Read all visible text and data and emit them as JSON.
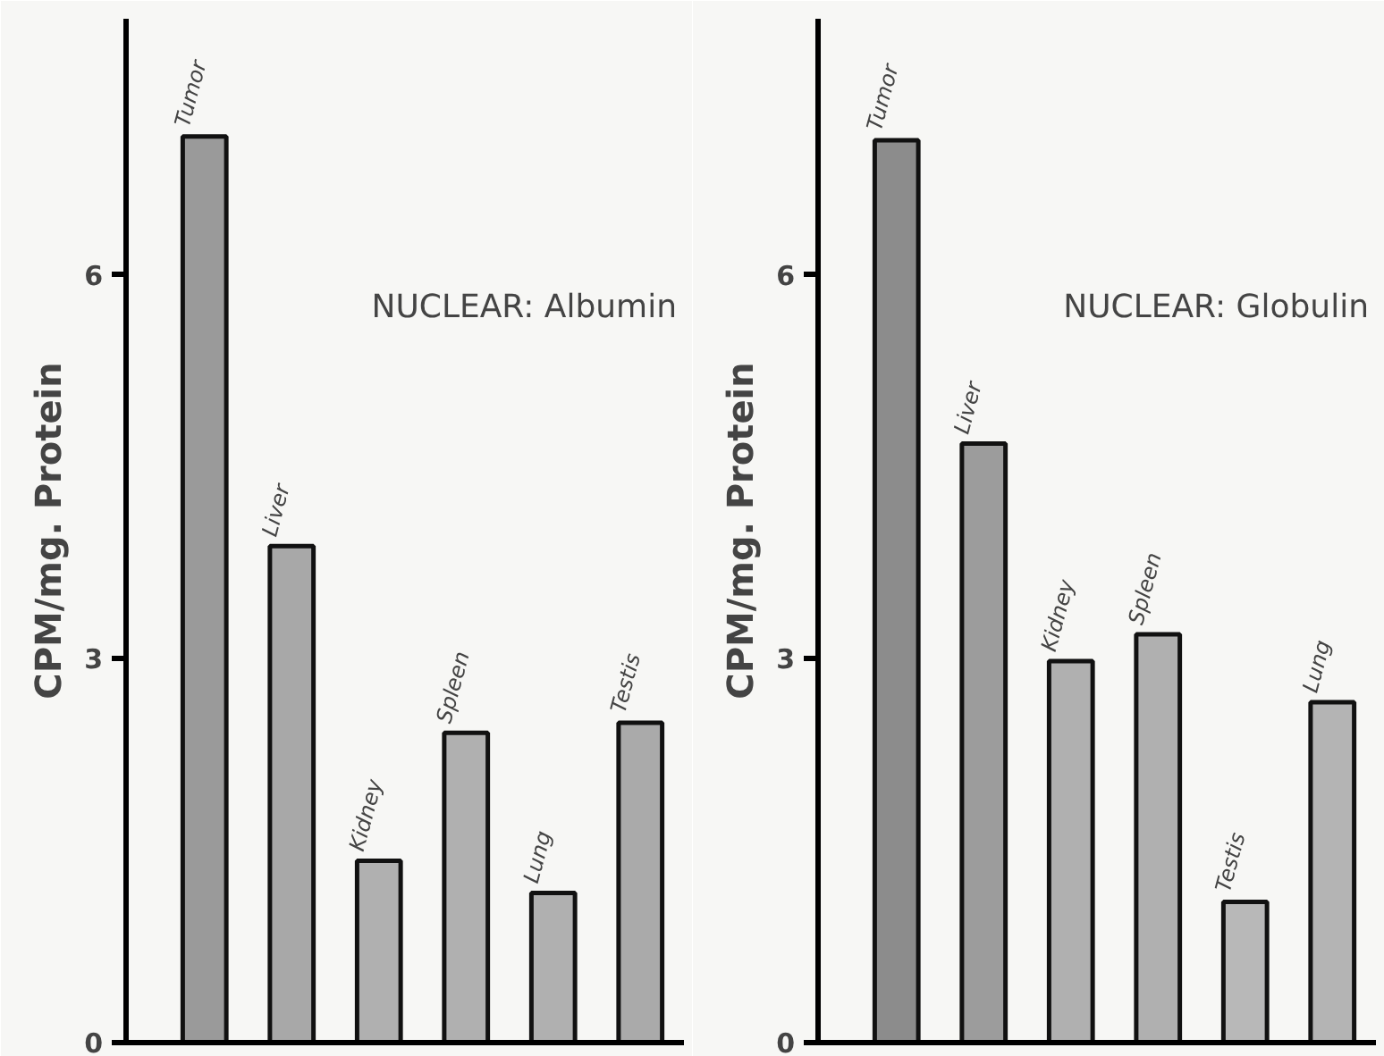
{
  "chart_data": [
    {
      "type": "bar",
      "title": "NUCLEAR: Albumin",
      "ylabel": "CPM/mg. Protein",
      "categories": [
        "Tumor",
        "Liver",
        "Kidney",
        "Spleen",
        "Lung",
        "Testis"
      ],
      "values": [
        7.08,
        3.88,
        1.42,
        2.42,
        1.17,
        2.5
      ],
      "colors": [
        "#9a9a9a",
        "#a8a8a8",
        "#b0b0b0",
        "#b0b0b0",
        "#b0b0b0",
        "#aaaaaa"
      ],
      "ylim": [
        0,
        8
      ],
      "yticks": [
        0,
        3,
        6
      ],
      "grid": false
    },
    {
      "type": "bar",
      "title": "NUCLEAR: Globulin",
      "ylabel": "CPM/mg. Protein",
      "categories": [
        "Tumor",
        "Liver",
        "Kidney",
        "Spleen",
        "Testis",
        "Lung"
      ],
      "values": [
        7.05,
        4.68,
        2.98,
        3.19,
        1.1,
        2.66
      ],
      "colors": [
        "#8c8c8c",
        "#9c9c9c",
        "#b0b0b0",
        "#b0b0b0",
        "#b8b8b8",
        "#b4b4b4"
      ],
      "ylim": [
        0,
        8
      ],
      "yticks": [
        0,
        3,
        6
      ],
      "grid": false
    }
  ]
}
